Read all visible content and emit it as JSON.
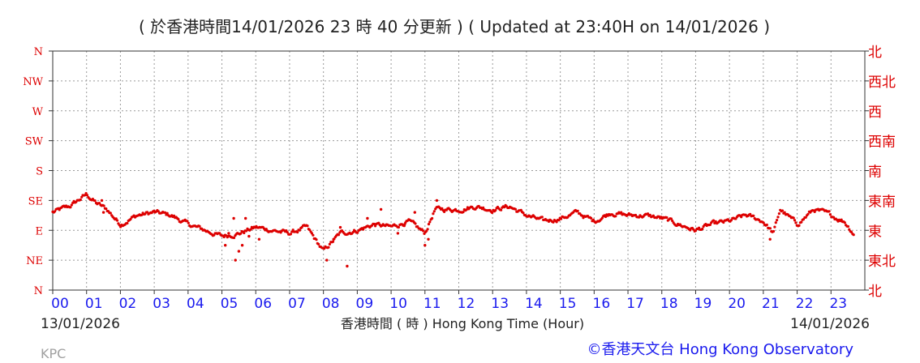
{
  "header": {
    "title": "( 於香港時間14/01/2026 23 時 40 分更新 ) ( Updated at 23:40H on 14/01/2026 )"
  },
  "footer": {
    "start_date": "13/01/2026",
    "end_date": "14/01/2026",
    "xlabel": "香港時間 ( 時 )  Hong Kong Time (Hour)",
    "station": "KPC",
    "copyright": "©香港天文台 Hong Kong Observatory"
  },
  "colors": {
    "data": "#dd0000",
    "left_axis_labels": "#dd0000",
    "right_axis_labels": "#dd0000",
    "hour_labels": "#1a1aee",
    "grid": "#9a9a9a",
    "text": "#222222"
  },
  "chart_data": {
    "type": "scatter",
    "title": "( 於香港時間14/01/2026 23 時 40 分更新 ) ( Updated at 23:40H on 14/01/2026 )",
    "xlabel": "香港時間 ( 時 )  Hong Kong Time (Hour)",
    "ylabel": "",
    "xlim": [
      0,
      24
    ],
    "ylim": [
      0,
      8
    ],
    "grid": true,
    "x_ticks": [
      0,
      1,
      2,
      3,
      4,
      5,
      6,
      7,
      8,
      9,
      10,
      11,
      12,
      13,
      14,
      15,
      16,
      17,
      18,
      19,
      20,
      21,
      22,
      23
    ],
    "x_tick_labels": [
      "00",
      "01",
      "02",
      "03",
      "04",
      "05",
      "06",
      "07",
      "08",
      "09",
      "10",
      "11",
      "12",
      "13",
      "14",
      "15",
      "16",
      "17",
      "18",
      "19",
      "20",
      "21",
      "22",
      "23"
    ],
    "y_ticks": [
      0,
      1,
      2,
      3,
      4,
      5,
      6,
      7,
      8
    ],
    "y_tick_labels_left": [
      "N",
      "NE",
      "E",
      "SE",
      "S",
      "SW",
      "W",
      "NW",
      "N"
    ],
    "y_tick_labels_right": [
      "北",
      "東北",
      "東",
      "東南",
      "南",
      "西南",
      "西",
      "西北",
      "北"
    ],
    "series": [
      {
        "name": "",
        "trend": [
          [
            0.0,
            2.6
          ],
          [
            0.5,
            2.8
          ],
          [
            1.0,
            3.2
          ],
          [
            1.3,
            2.9
          ],
          [
            1.6,
            2.7
          ],
          [
            2.0,
            2.2
          ],
          [
            2.5,
            2.5
          ],
          [
            3.0,
            2.6
          ],
          [
            3.5,
            2.5
          ],
          [
            4.0,
            2.2
          ],
          [
            4.5,
            2.0
          ],
          [
            5.0,
            1.8
          ],
          [
            5.5,
            1.9
          ],
          [
            6.0,
            2.1
          ],
          [
            6.5,
            2.0
          ],
          [
            7.0,
            1.9
          ],
          [
            7.5,
            2.1
          ],
          [
            8.0,
            1.3
          ],
          [
            8.5,
            1.9
          ],
          [
            9.0,
            2.0
          ],
          [
            9.5,
            2.2
          ],
          [
            10.0,
            2.1
          ],
          [
            10.5,
            2.3
          ],
          [
            11.0,
            1.9
          ],
          [
            11.3,
            2.7
          ],
          [
            11.7,
            2.7
          ],
          [
            12.0,
            2.7
          ],
          [
            12.5,
            2.8
          ],
          [
            13.0,
            2.7
          ],
          [
            13.5,
            2.8
          ],
          [
            14.0,
            2.5
          ],
          [
            14.5,
            2.3
          ],
          [
            15.0,
            2.4
          ],
          [
            15.5,
            2.6
          ],
          [
            16.0,
            2.3
          ],
          [
            16.5,
            2.6
          ],
          [
            17.0,
            2.5
          ],
          [
            17.5,
            2.5
          ],
          [
            18.0,
            2.4
          ],
          [
            18.5,
            2.2
          ],
          [
            19.0,
            2.0
          ],
          [
            19.5,
            2.2
          ],
          [
            20.0,
            2.3
          ],
          [
            20.5,
            2.5
          ],
          [
            21.0,
            2.3
          ],
          [
            21.3,
            1.9
          ],
          [
            21.5,
            2.7
          ],
          [
            22.0,
            2.2
          ],
          [
            22.5,
            2.7
          ],
          [
            23.0,
            2.5
          ],
          [
            23.4,
            2.3
          ],
          [
            23.67,
            1.9
          ]
        ],
        "scattered_points": [
          [
            5.1,
            1.5
          ],
          [
            5.2,
            1.9
          ],
          [
            5.35,
            2.4
          ],
          [
            5.4,
            1.0
          ],
          [
            5.5,
            1.3
          ],
          [
            5.6,
            1.5
          ],
          [
            5.8,
            1.8
          ],
          [
            6.1,
            1.7
          ],
          [
            8.1,
            1.0
          ],
          [
            8.3,
            1.7
          ],
          [
            8.7,
            0.8
          ],
          [
            9.3,
            2.4
          ],
          [
            9.7,
            2.7
          ],
          [
            10.2,
            1.9
          ],
          [
            10.7,
            2.6
          ],
          [
            11.0,
            1.5
          ],
          [
            11.1,
            1.7
          ],
          [
            11.35,
            3.0
          ],
          [
            1.45,
            3.0
          ],
          [
            1.5,
            2.6
          ],
          [
            21.2,
            1.7
          ],
          [
            5.7,
            2.4
          ],
          [
            8.5,
            2.1
          ],
          [
            10.4,
            2.2
          ]
        ]
      }
    ]
  }
}
